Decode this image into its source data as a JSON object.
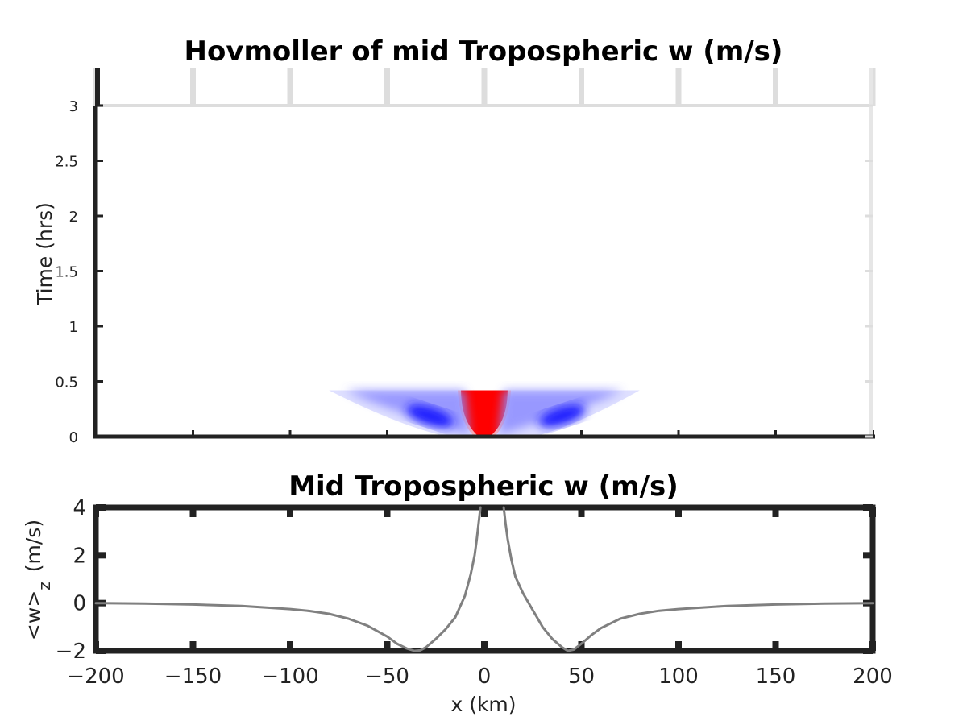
{
  "chart_data": [
    {
      "type": "heatmap",
      "title": "Hovmoller of mid Tropospheric w (m/s)",
      "xlabel": "",
      "ylabel": "Time (hrs)",
      "xlim": [
        -200,
        200
      ],
      "ylim": [
        0,
        3
      ],
      "x_ticks": [
        -200,
        -150,
        -100,
        -50,
        0,
        50,
        100,
        150,
        200
      ],
      "y_ticks": [
        0,
        0.5,
        1,
        1.5,
        2,
        2.5,
        3
      ],
      "y_tick_labels": [
        "0",
        "0.5",
        "1",
        "1.5",
        "2",
        "2.5",
        "3"
      ],
      "data_time_range": [
        0,
        0.42
      ],
      "data_x_range": [
        -80,
        80
      ],
      "features": [
        {
          "name": "updraft core",
          "sign": "positive",
          "color": "#ff0000",
          "x_range": [
            -12,
            12
          ],
          "t_range": [
            0.03,
            0.42
          ]
        },
        {
          "name": "left subsidence",
          "sign": "negative",
          "color": "#0000ff",
          "x_range": [
            -80,
            -10
          ],
          "t_range": [
            0.03,
            0.42
          ]
        },
        {
          "name": "right subsidence",
          "sign": "negative",
          "color": "#0000ff",
          "x_range": [
            10,
            80
          ],
          "t_range": [
            0.03,
            0.42
          ]
        }
      ]
    },
    {
      "type": "line",
      "title": "Mid Tropospheric w (m/s)",
      "xlabel": "x (km)",
      "ylabel": "<w>",
      "ylabel_subscript": "z",
      "ylabel_units": "(m/s)",
      "xlim": [
        -200,
        200
      ],
      "ylim": [
        -2,
        4
      ],
      "x_ticks": [
        -200,
        -150,
        -100,
        -50,
        0,
        50,
        100,
        150,
        200
      ],
      "x_tick_labels": [
        "−200",
        "−150",
        "−100",
        "−50",
        "0",
        "50",
        "100",
        "150",
        "200"
      ],
      "y_ticks": [
        -2,
        0,
        2,
        4
      ],
      "y_tick_labels": [
        "−2",
        "0",
        "2",
        "4"
      ],
      "series": [
        {
          "name": "left branch",
          "color": "#808080",
          "x": [
            -200,
            -175,
            -150,
            -125,
            -100,
            -90,
            -80,
            -70,
            -60,
            -50,
            -45,
            -40,
            -36,
            -33,
            -30,
            -25,
            -20,
            -15,
            -10,
            -7,
            -5,
            -4,
            -3,
            -2
          ],
          "y": [
            0.0,
            -0.02,
            -0.06,
            -0.12,
            -0.25,
            -0.33,
            -0.45,
            -0.65,
            -0.95,
            -1.4,
            -1.7,
            -1.9,
            -2.0,
            -1.98,
            -1.85,
            -1.5,
            -1.1,
            -0.6,
            0.3,
            1.2,
            2.0,
            2.6,
            3.3,
            4.0
          ]
        },
        {
          "name": "right branch",
          "color": "#808080",
          "x": [
            10,
            11,
            12,
            14,
            16,
            20,
            25,
            30,
            35,
            40,
            43,
            46,
            50,
            55,
            60,
            70,
            80,
            90,
            100,
            125,
            150,
            175,
            200
          ],
          "y": [
            4.0,
            3.3,
            2.7,
            1.8,
            1.1,
            0.4,
            -0.3,
            -1.0,
            -1.5,
            -1.85,
            -2.0,
            -1.95,
            -1.7,
            -1.35,
            -1.05,
            -0.65,
            -0.45,
            -0.32,
            -0.25,
            -0.12,
            -0.06,
            -0.02,
            0.0
          ]
        }
      ]
    }
  ]
}
